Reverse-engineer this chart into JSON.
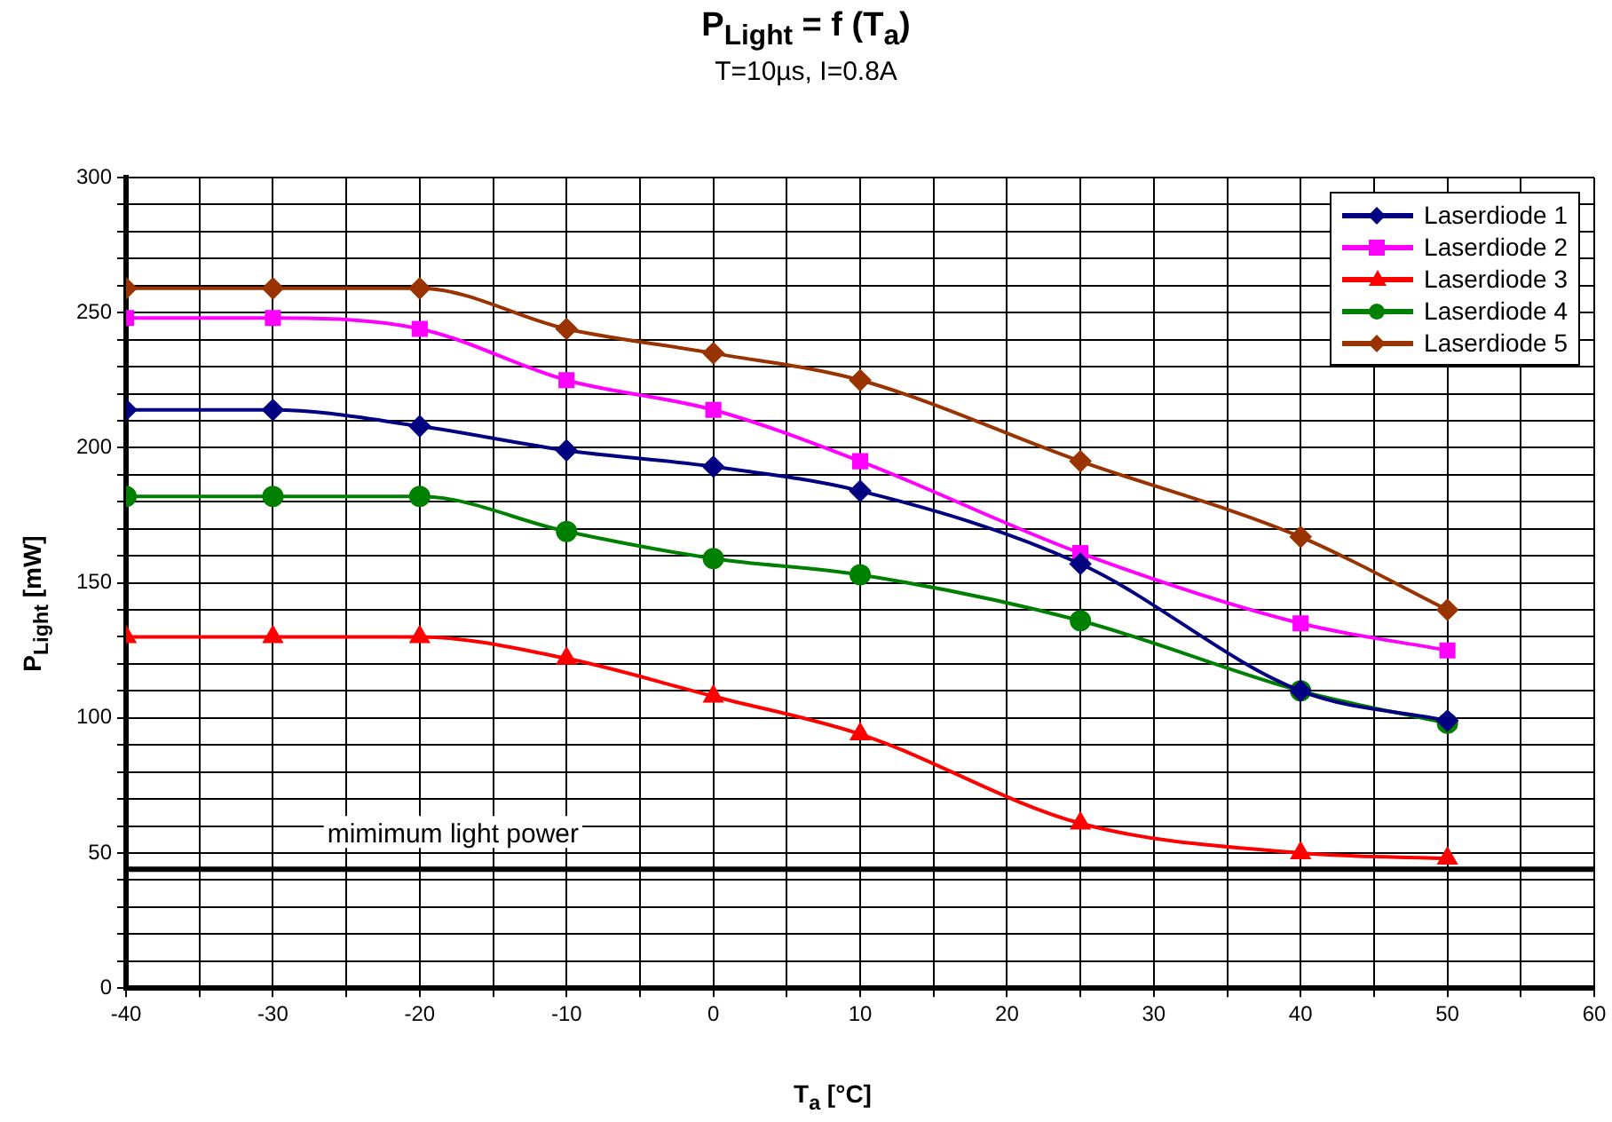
{
  "chart_data": {
    "type": "line",
    "title": "P$_{Light}$ = f (T$_{a}$)",
    "subtitle": "T=10µs, I=0.8A",
    "xlabel": "T$_{a}$ [°C]",
    "ylabel": "P$_{Light}$ [mW]",
    "x": [
      -40,
      -30,
      -20,
      -10,
      0,
      10,
      25,
      40,
      50
    ],
    "series": [
      {
        "name": "Laserdiode 1",
        "color": "#000080",
        "marker": "diamond",
        "values": [
          214,
          214,
          208,
          199,
          193,
          184,
          157,
          110,
          99
        ]
      },
      {
        "name": "Laserdiode 2",
        "color": "#ff00ff",
        "marker": "square",
        "values": [
          248,
          248,
          244,
          225,
          214,
          195,
          161,
          135,
          125
        ]
      },
      {
        "name": "Laserdiode 3",
        "color": "#ff0000",
        "marker": "triangle",
        "values": [
          130,
          130,
          130,
          122,
          108,
          94,
          61,
          50,
          48
        ]
      },
      {
        "name": "Laserdiode 4",
        "color": "#008000",
        "marker": "circle",
        "values": [
          182,
          182,
          182,
          169,
          159,
          153,
          136,
          110,
          98
        ]
      },
      {
        "name": "Laserdiode 5",
        "color": "#993300",
        "marker": "diamond",
        "values": [
          259,
          259,
          259,
          244,
          235,
          225,
          195,
          167,
          140
        ]
      }
    ],
    "xlim": [
      -40,
      60
    ],
    "xticks": [
      -40,
      {
        "value": -35,
        "label": null
      },
      -30,
      {
        "value": -25,
        "label": null
      },
      -20,
      {
        "value": -15,
        "label": null
      },
      -10,
      {
        "value": -5,
        "label": null
      },
      0,
      {
        "value": 5,
        "label": null
      },
      10,
      {
        "value": 15,
        "label": null
      },
      20,
      {
        "value": 25,
        "label": null
      },
      30,
      {
        "value": 35,
        "label": null
      },
      40,
      {
        "value": 45,
        "label": null
      },
      50,
      {
        "value": 55,
        "label": null
      },
      60
    ],
    "ylim": [
      0,
      300
    ],
    "yticks": [
      0,
      {
        "value": 10,
        "label": null
      },
      {
        "value": 20,
        "label": null
      },
      {
        "value": 30,
        "label": null
      },
      {
        "value": 40,
        "label": null
      },
      50,
      {
        "value": 60,
        "label": null
      },
      {
        "value": 70,
        "label": null
      },
      {
        "value": 80,
        "label": null
      },
      {
        "value": 90,
        "label": null
      },
      100,
      {
        "value": 110,
        "label": null
      },
      {
        "value": 120,
        "label": null
      },
      {
        "value": 130,
        "label": null
      },
      {
        "value": 140,
        "label": null
      },
      150,
      {
        "value": 160,
        "label": null
      },
      {
        "value": 170,
        "label": null
      },
      {
        "value": 180,
        "label": null
      },
      {
        "value": 190,
        "label": null
      },
      200,
      {
        "value": 210,
        "label": null
      },
      {
        "value": 220,
        "label": null
      },
      {
        "value": 230,
        "label": null
      },
      {
        "value": 240,
        "label": null
      },
      250,
      {
        "value": 260,
        "label": null
      },
      {
        "value": 270,
        "label": null
      },
      {
        "value": 280,
        "label": null
      },
      {
        "value": 290,
        "label": null
      },
      300
    ],
    "ref_lines": [
      {
        "axis": "y",
        "value": 44,
        "label": "mimimum light power",
        "color": "#000000"
      }
    ],
    "grid": true,
    "legend": "top right",
    "line_style": "solid"
  }
}
